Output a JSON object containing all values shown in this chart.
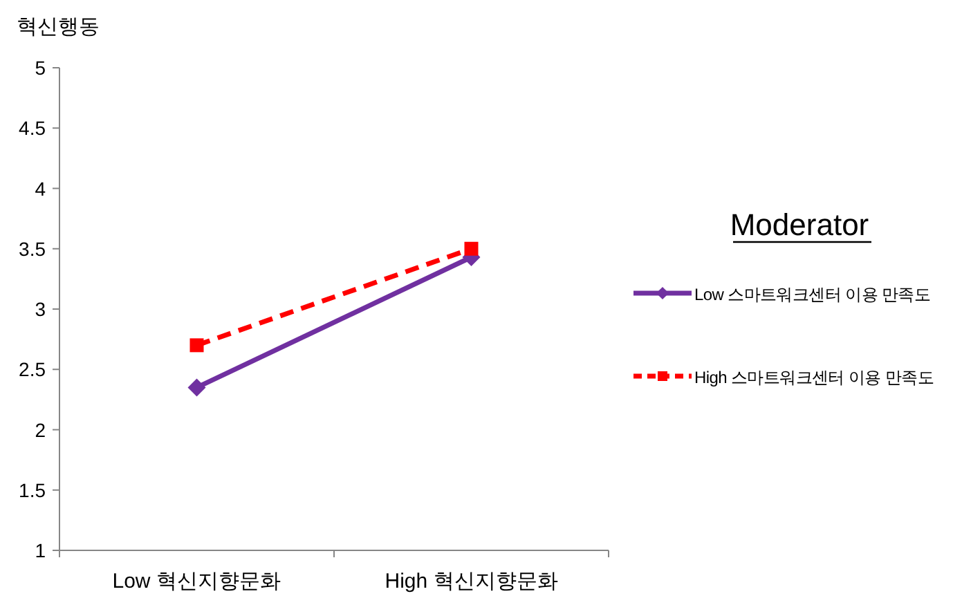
{
  "chart_data": {
    "type": "line",
    "ylabel": "혁신행동",
    "legend_title": "Moderator",
    "categories": [
      "Low 혁신지향문화",
      "High 혁신지향문화"
    ],
    "series": [
      {
        "name": "Low 스마트워크센터 이용 만족도",
        "color": "#7030a0",
        "values": [
          2.35,
          3.43
        ],
        "marker": "diamond",
        "line_style": "solid"
      },
      {
        "name": "High 스마트워크센터 이용 만족도",
        "color": "#ff0000",
        "values": [
          2.7,
          3.5
        ],
        "marker": "square",
        "line_style": "dashed"
      }
    ],
    "ylim": [
      1,
      5
    ],
    "yticks": [
      1,
      1.5,
      2,
      2.5,
      3,
      3.5,
      4,
      4.5,
      5
    ],
    "grid": false,
    "legend": "right"
  }
}
